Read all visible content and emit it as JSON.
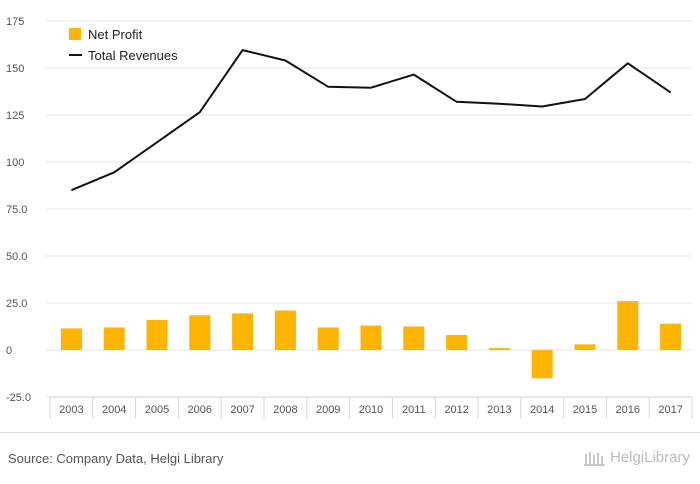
{
  "chart_data": {
    "type": "bar+line",
    "categories": [
      "2003",
      "2004",
      "2005",
      "2006",
      "2007",
      "2008",
      "2009",
      "2010",
      "2011",
      "2012",
      "2013",
      "2014",
      "2015",
      "2016",
      "2017"
    ],
    "series": [
      {
        "name": "Net Profit",
        "type": "bar",
        "color": "#FFB400",
        "values": [
          11.5,
          12.0,
          16.0,
          18.5,
          19.5,
          21.0,
          12.0,
          13.0,
          12.5,
          8.0,
          1.0,
          -15.0,
          3.0,
          26.0,
          14.0
        ]
      },
      {
        "name": "Total Revenues",
        "type": "line",
        "color": "#111111",
        "values": [
          85.0,
          94.5,
          110.5,
          126.5,
          159.5,
          154.0,
          140.0,
          139.5,
          146.5,
          132.0,
          131.0,
          129.5,
          133.5,
          152.5,
          137.0
        ]
      }
    ],
    "yticks": [
      "-25.0",
      "0",
      "25.0",
      "50.0",
      "75.0",
      "100",
      "125",
      "150",
      "175"
    ],
    "ylim": [
      -25,
      175
    ],
    "title": "",
    "xlabel": "",
    "ylabel": "",
    "legend_position": "top-left",
    "grid": true
  },
  "footer": {
    "source": "Source: Company Data, Helgi Library",
    "logo_text": "HelgiLibrary"
  }
}
